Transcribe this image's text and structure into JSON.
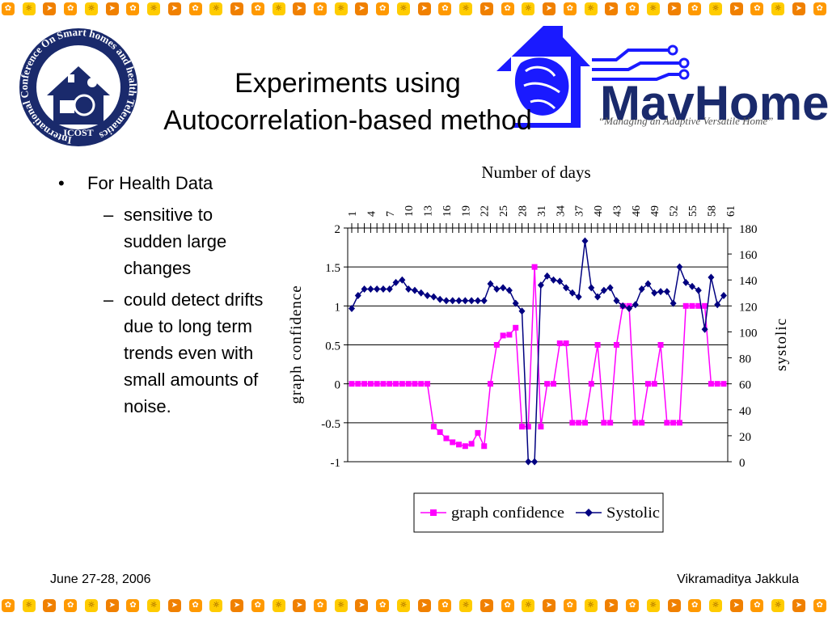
{
  "slide": {
    "title_line1": "Experiments using",
    "title_line2": "Autocorrelation-based method",
    "bullet_main": "For Health Data",
    "sub_bullets": [
      "sensitive to sudden large changes",
      "could detect drifts due to long term trends even with small amounts of noise."
    ],
    "footer_left": "June 27-28, 2006",
    "footer_right": "Vikramaditya Jakkula"
  },
  "logos": {
    "icost_ring_text": "International Conference On Smart homes and health Telematics",
    "icost_bottom": "ICOST",
    "mavhome_name": "MavHome",
    "mavhome_tagline": "“Managing an Adaptive Versatile Home”",
    "brand_blue": "#1a1aff",
    "navy": "#1a2a6c"
  },
  "border": {
    "tile_colors": [
      "#ff9900",
      "#ffcc00",
      "#f08000"
    ],
    "icon_names": [
      "flower",
      "sun",
      "arrow"
    ]
  },
  "chart_data": {
    "type": "line",
    "title": "Number of days",
    "ylabel_left": "graph confidence",
    "ylabel_right": "systolic",
    "ylim_left": [
      -1,
      2
    ],
    "yticks_left": [
      "2",
      "1.5",
      "1",
      "0.5",
      "0",
      "-0.5",
      "-1"
    ],
    "ylim_right": [
      0,
      180
    ],
    "yticks_right": [
      "180",
      "160",
      "140",
      "120",
      "100",
      "80",
      "60",
      "40",
      "20",
      "0"
    ],
    "x_tick_labels": [
      "1",
      "4",
      "7",
      "10",
      "13",
      "16",
      "19",
      "22",
      "25",
      "28",
      "31",
      "34",
      "37",
      "40",
      "43",
      "46",
      "49",
      "52",
      "55",
      "58",
      "61"
    ],
    "grid": "horizontal",
    "legend": "bottom",
    "series": [
      {
        "name": "graph confidence",
        "axis": "left",
        "color": "#ff00ff",
        "marker": "square",
        "values": [
          0,
          0,
          0,
          0,
          0,
          0,
          0,
          0,
          0,
          0,
          0,
          0,
          0,
          -0.55,
          -0.62,
          -0.7,
          -0.75,
          -0.78,
          -0.8,
          -0.77,
          -0.63,
          -0.8,
          0,
          0.5,
          0.62,
          0.63,
          0.72,
          -0.55,
          -0.55,
          1.5,
          -0.55,
          0,
          0,
          0.52,
          0.52,
          -0.5,
          -0.5,
          -0.5,
          0,
          0.5,
          -0.5,
          -0.5,
          0.5,
          1,
          1,
          -0.5,
          -0.5,
          0,
          0,
          0.5,
          -0.5,
          -0.5,
          -0.5,
          1,
          1,
          1,
          1,
          0,
          0,
          0
        ]
      },
      {
        "name": "Systolic",
        "axis": "right",
        "color": "#000080",
        "marker": "diamond",
        "values": [
          118,
          128,
          133,
          133,
          133,
          133,
          133,
          138,
          140,
          133,
          132,
          130,
          128,
          127,
          125,
          124,
          124,
          124,
          124,
          124,
          124,
          124,
          137,
          133,
          134,
          132,
          122,
          116,
          0,
          0,
          136,
          143,
          140,
          139,
          134,
          130,
          127,
          170,
          134,
          127,
          132,
          134,
          124,
          120,
          118,
          121,
          133,
          137,
          130,
          131,
          131,
          122,
          150,
          138,
          135,
          132,
          102,
          142,
          121,
          128
        ]
      }
    ]
  }
}
